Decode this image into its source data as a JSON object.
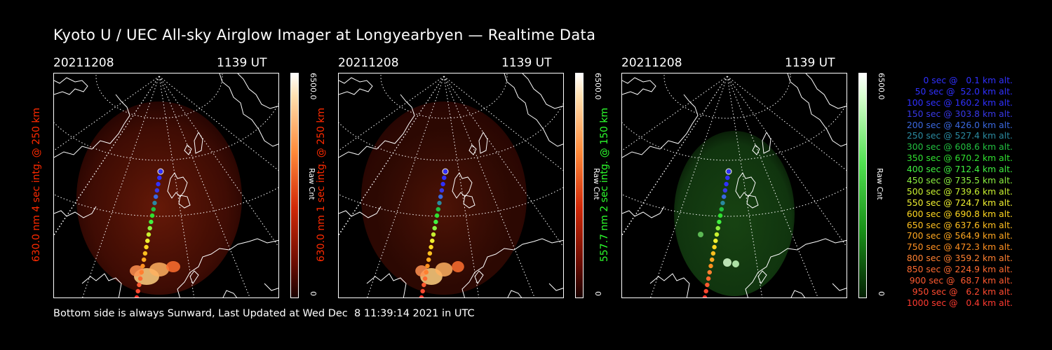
{
  "title": "Kyoto U / UEC All-sky Airglow Imager at Longyearbyen — Realtime Data",
  "footer": "Bottom side is always Sunward, Last Updated at Wed Dec  8 11:39:14 2021 in UTC",
  "panels": [
    {
      "date": "20211208",
      "time": "1139 UT",
      "ylabel": "630.0 nm 4 sec intg. @ 250 km",
      "cbar_max": "6500.0",
      "cbar_unit": "Raw Cnt",
      "cbar_min": "0",
      "color": "#ff2a00",
      "scheme": "red",
      "intensity": 1.0
    },
    {
      "date": "20211208",
      "time": "1139 UT",
      "ylabel": "630.0 nm 1 sec intg. @ 250 km",
      "cbar_max": "6500.0",
      "cbar_unit": "Raw Cnt",
      "cbar_min": "0",
      "color": "#ff2a00",
      "scheme": "red",
      "intensity": 0.7
    },
    {
      "date": "20211208",
      "time": "1139 UT",
      "ylabel": "557.7 nm 2 sec intg. @ 150 km",
      "cbar_max": "6500.0",
      "cbar_unit": "Raw Cnt",
      "cbar_min": "0",
      "color": "#2dff2d",
      "scheme": "green",
      "intensity": 0.8
    }
  ],
  "legend": [
    {
      "text": "0 sec @   0.1 km alt.",
      "color": "#3030ff"
    },
    {
      "text": "50 sec @  52.0 km alt.",
      "color": "#3030ff"
    },
    {
      "text": "100 sec @ 160.2 km alt.",
      "color": "#3030ff"
    },
    {
      "text": "150 sec @ 303.8 km alt.",
      "color": "#3838e8"
    },
    {
      "text": "200 sec @ 426.0 km alt.",
      "color": "#3a68e0"
    },
    {
      "text": "250 sec @ 527.4 km alt.",
      "color": "#2a8aa0"
    },
    {
      "text": "300 sec @ 608.6 km alt.",
      "color": "#22c040"
    },
    {
      "text": "350 sec @ 670.2 km alt.",
      "color": "#30e030"
    },
    {
      "text": "400 sec @ 712.4 km alt.",
      "color": "#40f040"
    },
    {
      "text": "450 sec @ 735.5 km alt.",
      "color": "#8cf040"
    },
    {
      "text": "500 sec @ 739.6 km alt.",
      "color": "#c8f030"
    },
    {
      "text": "550 sec @ 724.7 km alt.",
      "color": "#f0f030"
    },
    {
      "text": "600 sec @ 690.8 km alt.",
      "color": "#ffd820"
    },
    {
      "text": "650 sec @ 637.6 km alt.",
      "color": "#ffc020"
    },
    {
      "text": "700 sec @ 564.9 km alt.",
      "color": "#ffa820"
    },
    {
      "text": "750 sec @ 472.3 km alt.",
      "color": "#ff9020"
    },
    {
      "text": "800 sec @ 359.2 km alt.",
      "color": "#ff8030"
    },
    {
      "text": "850 sec @ 224.9 km alt.",
      "color": "#ff6a30"
    },
    {
      "text": "900 sec @  68.7 km alt.",
      "color": "#ff5a30"
    },
    {
      "text": "950 sec @   6.2 km alt.",
      "color": "#ff4a30"
    },
    {
      "text": "1000 sec @   0.4 km alt.",
      "color": "#ff3a30"
    }
  ]
}
